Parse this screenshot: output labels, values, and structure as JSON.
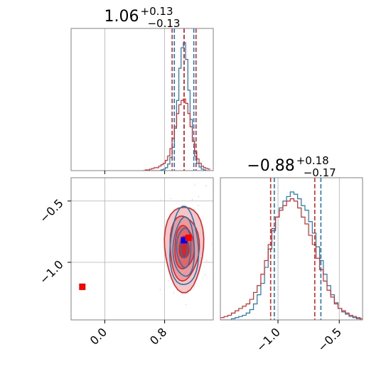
{
  "chart_data": [
    {
      "type": "histogram",
      "panel": "top-left",
      "title": {
        "value": "1.06",
        "plus": "+0.13",
        "minus": "−0.13"
      },
      "xlim": [
        -0.45,
        1.45
      ],
      "x_ticks": [
        0.0,
        0.8
      ],
      "bins_x": [
        0.51,
        0.54,
        0.57,
        0.6,
        0.63,
        0.66,
        0.69,
        0.72,
        0.75,
        0.78,
        0.81,
        0.84,
        0.87,
        0.9,
        0.93,
        0.96,
        0.99,
        1.02,
        1.05,
        1.08,
        1.11,
        1.14,
        1.17,
        1.2,
        1.23,
        1.26,
        1.29,
        1.32,
        1.35,
        1.38,
        1.41
      ],
      "series": [
        {
          "color": "#1f77b4",
          "quantile_lines": [
            0.93,
            1.06,
            1.19
          ],
          "counts": [
            0,
            0,
            0,
            0,
            0,
            0,
            0,
            0,
            1,
            2,
            4,
            9,
            18,
            32,
            58,
            96,
            140,
            168,
            175,
            152,
            110,
            70,
            40,
            20,
            10,
            5,
            2,
            1,
            0,
            0
          ]
        },
        {
          "color": "#d62728",
          "quantile_lines": [
            0.9,
            1.06,
            1.22
          ],
          "counts": [
            0,
            1,
            1,
            2,
            3,
            4,
            4,
            6,
            8,
            10,
            14,
            20,
            30,
            44,
            60,
            78,
            90,
            96,
            98,
            92,
            78,
            60,
            40,
            26,
            16,
            10,
            6,
            4,
            3,
            2
          ]
        }
      ]
    },
    {
      "type": "histogram",
      "panel": "bottom-right",
      "title": {
        "value": "−0.88",
        "plus": "+0.18",
        "minus": "−0.17"
      },
      "xlim": [
        -1.47,
        -0.31
      ],
      "x_ticks": [
        -1.0,
        -0.5
      ],
      "x_tick_labels": [
        "−1.0",
        "−0.5"
      ],
      "bins_x": [
        -1.47,
        -1.44,
        -1.41,
        -1.38,
        -1.35,
        -1.32,
        -1.29,
        -1.26,
        -1.23,
        -1.2,
        -1.17,
        -1.14,
        -1.11,
        -1.08,
        -1.05,
        -1.02,
        -0.99,
        -0.96,
        -0.93,
        -0.9,
        -0.87,
        -0.84,
        -0.81,
        -0.78,
        -0.75,
        -0.72,
        -0.69,
        -0.66,
        -0.63,
        -0.6,
        -0.57,
        -0.54,
        -0.51,
        -0.48,
        -0.45,
        -0.42,
        -0.39,
        -0.36,
        -0.33,
        -0.31
      ],
      "series": [
        {
          "color": "#1f77b4",
          "quantile_lines": [
            -1.03,
            -0.65
          ],
          "counts": [
            0,
            0,
            0,
            1,
            2,
            3,
            4,
            6,
            9,
            14,
            22,
            32,
            46,
            62,
            78,
            90,
            98,
            104,
            108,
            112,
            110,
            106,
            100,
            96,
            86,
            76,
            64,
            52,
            40,
            30,
            22,
            15,
            10,
            7,
            5,
            3,
            2,
            1,
            0
          ]
        },
        {
          "color": "#d62728",
          "quantile_lines": [
            -1.06,
            -0.7
          ],
          "counts": [
            2,
            3,
            4,
            6,
            8,
            10,
            12,
            14,
            18,
            24,
            30,
            40,
            52,
            66,
            80,
            90,
            96,
            100,
            104,
            106,
            104,
            98,
            90,
            84,
            74,
            66,
            54,
            44,
            34,
            26,
            20,
            14,
            10,
            8,
            6,
            4,
            3,
            2,
            1
          ]
        }
      ]
    },
    {
      "type": "contour",
      "panel": "bottom-left",
      "xlim": [
        -0.45,
        1.45
      ],
      "ylim": [
        -1.47,
        -0.31
      ],
      "x_ticks": [
        0.0,
        0.8
      ],
      "x_tick_labels": [
        "0.0",
        "0.8"
      ],
      "y_ticks": [
        -0.5,
        -1.0
      ],
      "y_tick_labels": [
        "−0.5",
        "−1.0"
      ],
      "series": [
        {
          "color": "#d62728",
          "center": [
            1.06,
            -0.88
          ],
          "sigma": [
            0.13,
            0.175
          ],
          "style": "filled"
        },
        {
          "color": "#1f77b4",
          "center": [
            1.06,
            -0.88
          ],
          "sigma": [
            0.095,
            0.16
          ],
          "style": "lines"
        }
      ],
      "markers": [
        {
          "color": "#0000ff",
          "x": 1.06,
          "y": -0.82
        },
        {
          "color": "#ff0000",
          "x": 1.12,
          "y": -0.8
        },
        {
          "color": "#ff0000",
          "x": -0.3,
          "y": -1.2
        }
      ]
    }
  ]
}
